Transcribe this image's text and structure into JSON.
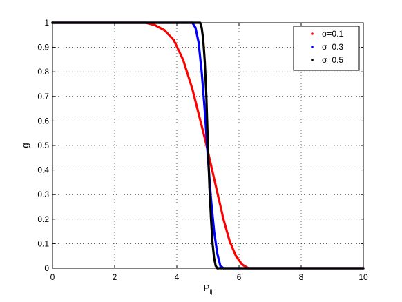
{
  "chart_data": {
    "type": "scatter",
    "xlabel_main": "P",
    "xlabel_sub": "ij",
    "ylabel": "g",
    "xlim": [
      0,
      10
    ],
    "ylim": [
      0,
      1
    ],
    "x_ticks": [
      0,
      2,
      4,
      6,
      8,
      10
    ],
    "y_ticks": [
      0,
      0.1,
      0.2,
      0.3,
      0.4,
      0.5,
      0.6,
      0.7,
      0.8,
      0.9,
      1
    ],
    "x_tick_labels": [
      "0",
      "2",
      "4",
      "6",
      "8",
      "10"
    ],
    "y_tick_labels": [
      "0",
      "0.1",
      "0.2",
      "0.3",
      "0.4",
      "0.5",
      "0.6",
      "0.7",
      "0.8",
      "0.9",
      "1"
    ],
    "grid": true,
    "legend_position": "top-right",
    "series": [
      {
        "name": "σ=0.1",
        "color": "#ff0000",
        "x": [
          0,
          3.0,
          3.3,
          3.6,
          3.9,
          4.2,
          4.5,
          4.7,
          4.9,
          5.1,
          5.3,
          5.5,
          5.7,
          5.9,
          6.1,
          6.3,
          10
        ],
        "y": [
          1,
          1,
          0.99,
          0.97,
          0.93,
          0.85,
          0.73,
          0.63,
          0.53,
          0.42,
          0.31,
          0.2,
          0.11,
          0.05,
          0.015,
          0,
          0
        ]
      },
      {
        "name": "σ=0.3",
        "color": "#0000ff",
        "x": [
          0,
          4.5,
          4.6,
          4.7,
          4.8,
          4.9,
          5.0,
          5.1,
          5.2,
          5.3,
          5.4,
          5.5,
          10
        ],
        "y": [
          1,
          1,
          0.98,
          0.92,
          0.8,
          0.64,
          0.45,
          0.28,
          0.15,
          0.06,
          0.01,
          0,
          0
        ]
      },
      {
        "name": "σ=0.5",
        "color": "#000000",
        "x": [
          0,
          4.75,
          4.8,
          4.85,
          4.9,
          4.95,
          5.0,
          5.05,
          5.1,
          5.15,
          5.2,
          5.25,
          5.3,
          10
        ],
        "y": [
          1,
          1,
          0.98,
          0.93,
          0.84,
          0.7,
          0.5,
          0.33,
          0.2,
          0.1,
          0.04,
          0.01,
          0,
          0
        ]
      }
    ]
  }
}
